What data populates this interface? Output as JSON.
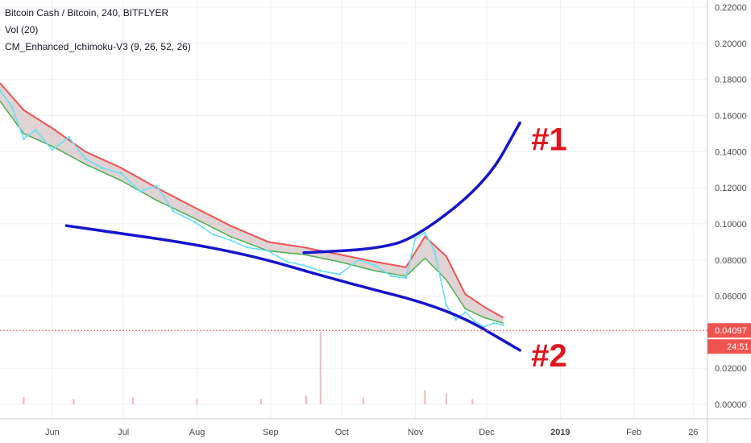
{
  "legend": {
    "symbol": "Bitcoin Cash / Bitcoin, 240, BITFLYER",
    "volume": "Vol (20)",
    "indicator": "CM_Enhanced_Ichimoku-V3 (9, 26, 52, 26)"
  },
  "chart_data": {
    "type": "line",
    "symbol": "Bitcoin Cash / Bitcoin",
    "interval": "240",
    "exchange": "BITFLYER",
    "y_axis": {
      "ticks": [
        "0.22000",
        "0.20000",
        "0.18000",
        "0.16000",
        "0.14000",
        "0.12000",
        "0.10000",
        "0.08000",
        "0.06000",
        "0.04000",
        "0.02000",
        "0.00000"
      ],
      "ylim": [
        -0.008,
        0.224
      ],
      "position": "right"
    },
    "x_axis": {
      "ticks": [
        "Jun",
        "Jul",
        "Aug",
        "Sep",
        "Oct",
        "Nov",
        "Dec",
        "2019",
        "Feb",
        "26"
      ]
    },
    "last_price": {
      "value": "0.04097",
      "color": "#ef5350"
    },
    "countdown": {
      "value": "24:51",
      "color": "#ef5350"
    },
    "price_series": {
      "name": "price",
      "color": "#66e0f5",
      "x": [
        "2018-05-10",
        "2018-05-15",
        "2018-05-20",
        "2018-05-25",
        "2018-06-01",
        "2018-06-08",
        "2018-06-15",
        "2018-06-22",
        "2018-06-30",
        "2018-07-08",
        "2018-07-15",
        "2018-07-22",
        "2018-07-31",
        "2018-08-08",
        "2018-08-15",
        "2018-08-22",
        "2018-08-31",
        "2018-09-08",
        "2018-09-15",
        "2018-09-22",
        "2018-09-30",
        "2018-10-08",
        "2018-10-15",
        "2018-10-22",
        "2018-10-28",
        "2018-11-01",
        "2018-11-05",
        "2018-11-09",
        "2018-11-14",
        "2018-11-18",
        "2018-11-22",
        "2018-11-26",
        "2018-11-30",
        "2018-12-04",
        "2018-12-08"
      ],
      "y": [
        0.174,
        0.165,
        0.147,
        0.152,
        0.141,
        0.148,
        0.136,
        0.131,
        0.128,
        0.118,
        0.121,
        0.107,
        0.101,
        0.094,
        0.091,
        0.087,
        0.085,
        0.079,
        0.077,
        0.074,
        0.072,
        0.08,
        0.077,
        0.071,
        0.07,
        0.092,
        0.095,
        0.085,
        0.055,
        0.047,
        0.051,
        0.046,
        0.043,
        0.045,
        0.044
      ]
    },
    "cloud": {
      "colors": {
        "bear": "#ef5350",
        "bull": "#4caf50",
        "fill": "#c9b6b6"
      },
      "x": [
        "2018-05-10",
        "2018-05-20",
        "2018-06-01",
        "2018-06-15",
        "2018-06-30",
        "2018-07-15",
        "2018-07-31",
        "2018-08-15",
        "2018-08-31",
        "2018-09-15",
        "2018-09-30",
        "2018-10-15",
        "2018-10-28",
        "2018-11-05",
        "2018-11-14",
        "2018-11-22",
        "2018-11-30",
        "2018-12-08"
      ],
      "upper": [
        0.178,
        0.163,
        0.153,
        0.14,
        0.131,
        0.12,
        0.109,
        0.099,
        0.09,
        0.087,
        0.083,
        0.079,
        0.076,
        0.093,
        0.082,
        0.061,
        0.054,
        0.048
      ],
      "lower": [
        0.168,
        0.15,
        0.143,
        0.133,
        0.124,
        0.113,
        0.103,
        0.093,
        0.085,
        0.083,
        0.079,
        0.074,
        0.071,
        0.081,
        0.069,
        0.053,
        0.048,
        0.045
      ]
    },
    "volume": {
      "x": [
        "2018-05-20",
        "2018-06-10",
        "2018-07-05",
        "2018-08-01",
        "2018-08-28",
        "2018-09-16",
        "2018-09-22",
        "2018-10-10",
        "2018-11-05",
        "2018-11-14",
        "2018-11-25"
      ],
      "values": [
        0.004,
        0.003,
        0.004,
        0.003,
        0.003,
        0.005,
        0.04,
        0.004,
        0.008,
        0.006,
        0.003
      ],
      "color": "#f2b8b8"
    },
    "annotations": [
      {
        "label": "#1",
        "color": "#e0161d",
        "line_color": "#1515cc",
        "path": [
          {
            "x": "2018-09-15",
            "y": 0.084
          },
          {
            "x": "2018-10-15",
            "y": 0.086
          },
          {
            "x": "2018-11-01",
            "y": 0.092
          },
          {
            "x": "2018-12-01",
            "y": 0.123
          },
          {
            "x": "2018-12-15",
            "y": 0.156
          }
        ]
      },
      {
        "label": "#2",
        "color": "#e0161d",
        "line_color": "#1515cc",
        "path": [
          {
            "x": "2018-06-07",
            "y": 0.099
          },
          {
            "x": "2018-08-15",
            "y": 0.086
          },
          {
            "x": "2018-10-01",
            "y": 0.068
          },
          {
            "x": "2018-11-15",
            "y": 0.053
          },
          {
            "x": "2018-12-15",
            "y": 0.03
          }
        ]
      }
    ]
  }
}
